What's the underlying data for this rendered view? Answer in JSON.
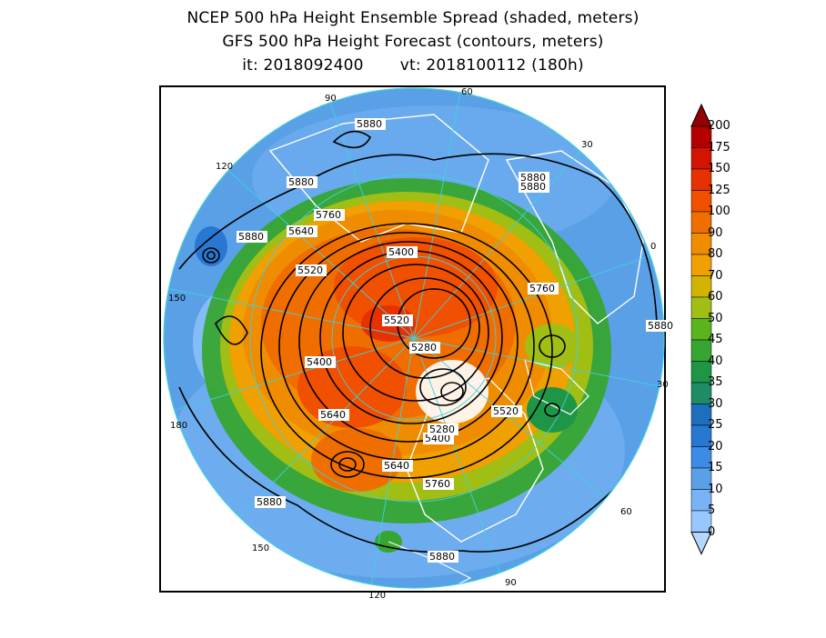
{
  "title": {
    "line1": "NCEP 500 hPa Height Ensemble Spread (shaded, meters)",
    "line2": "GFS 500 hPa Height Forecast (contours, meters)",
    "init": "it: 2018092400",
    "valid": "vt: 2018100112 (180h)"
  },
  "map": {
    "projection": "north-polar-stereographic",
    "longitude_labels": [
      "60",
      "30",
      "0",
      "30",
      "60",
      "90",
      "120",
      "150",
      "180",
      "150",
      "120",
      "90"
    ],
    "contour_labels": [
      "5880",
      "5880",
      "5880",
      "5880",
      "5880",
      "5880",
      "5880",
      "5880",
      "5760",
      "5760",
      "5760",
      "5640",
      "5640",
      "5640",
      "5520",
      "5520",
      "5520",
      "5400",
      "5400",
      "5400",
      "5280",
      "5280"
    ],
    "colors": {
      "ocean_background": "#5aa0e6",
      "gridline": "#40d0e0",
      "coastline": "#ffffff",
      "contour": "#000000"
    }
  },
  "colorbar": {
    "levels": [
      "0",
      "5",
      "10",
      "15",
      "20",
      "25",
      "30",
      "35",
      "40",
      "45",
      "50",
      "60",
      "70",
      "80",
      "90",
      "100",
      "125",
      "150",
      "175",
      "200"
    ],
    "colors": [
      "#b4d7ff",
      "#96c8ff",
      "#78b4f5",
      "#5aa0e6",
      "#3c8ce6",
      "#2878d2",
      "#1e6ebe",
      "#1e8c64",
      "#1e9646",
      "#37a532",
      "#5ab41e",
      "#a0be14",
      "#d2b400",
      "#f0a000",
      "#f08c00",
      "#f06e00",
      "#f05000",
      "#e63200",
      "#d21400",
      "#b40000",
      "#960000"
    ]
  }
}
